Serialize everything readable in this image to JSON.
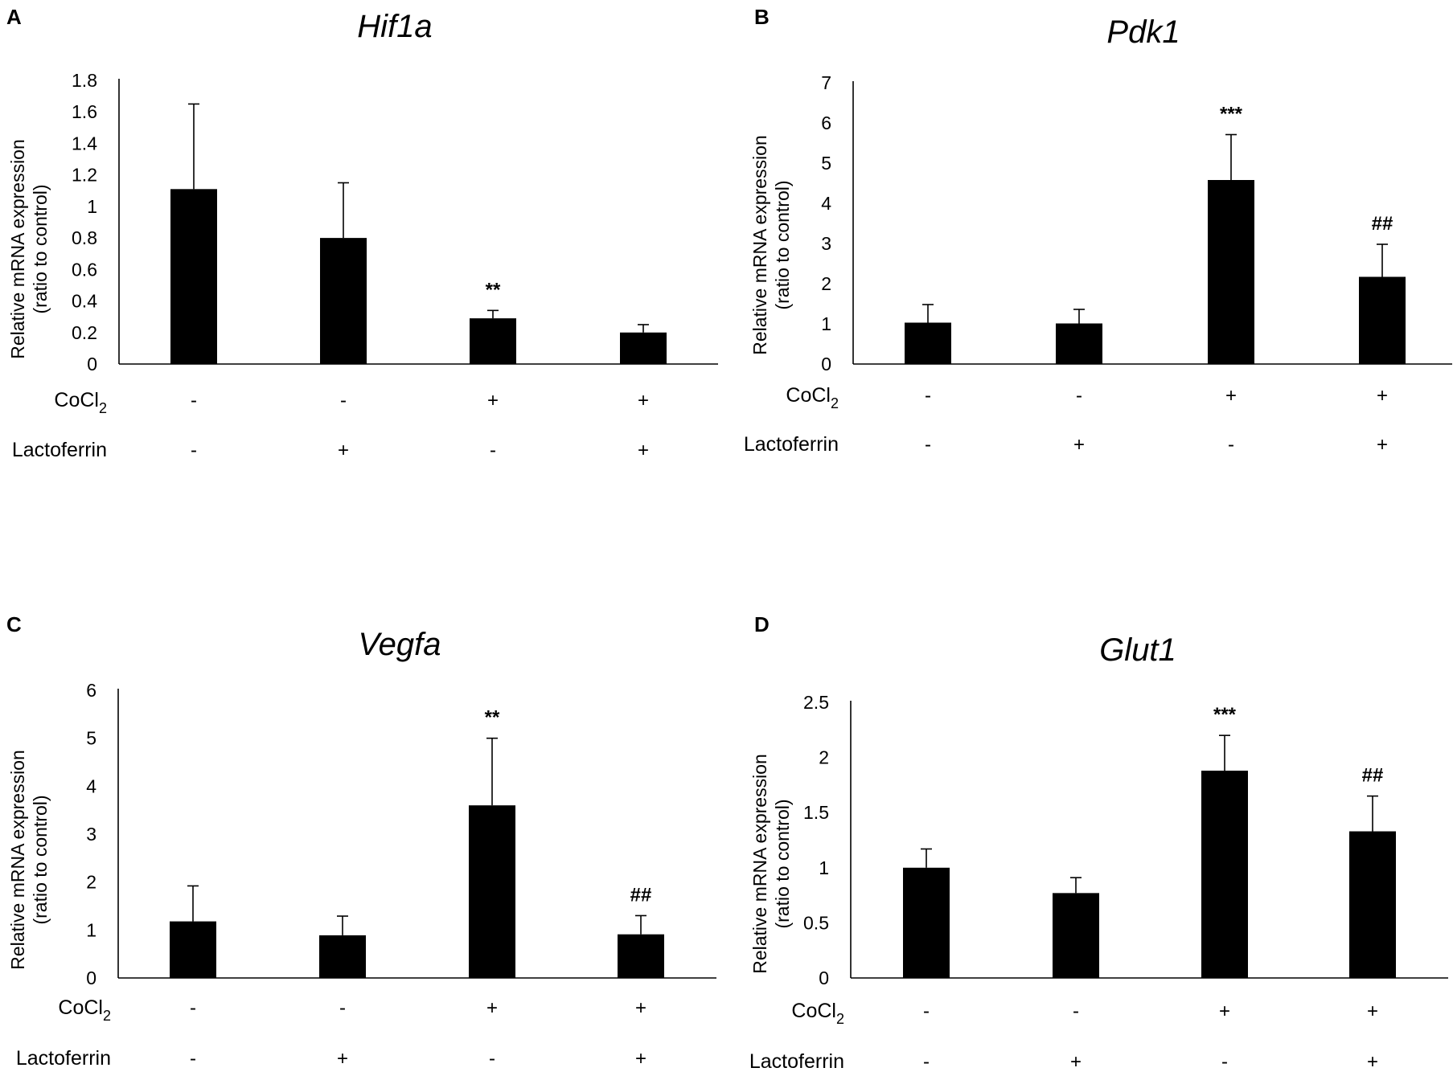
{
  "chart_data": [
    {
      "type": "bar",
      "panel": "A",
      "title": "Hif1a",
      "ylabel": [
        "Relative mRNA expression",
        "(ratio to control)"
      ],
      "ylim": [
        0,
        1.8
      ],
      "yticks": [
        "0",
        "0.2",
        "0.4",
        "0.6",
        "0.8",
        "1",
        "1.2",
        "1.4",
        "1.6",
        "1.8"
      ],
      "conditions": [
        {
          "label": "CoCl2",
          "values": [
            "-",
            "-",
            "+",
            "+"
          ]
        },
        {
          "label": "Lactoferrin",
          "values": [
            "-",
            "+",
            "-",
            "+"
          ]
        }
      ],
      "values": [
        1.11,
        0.8,
        0.29,
        0.2
      ],
      "errors": [
        0.54,
        0.35,
        0.05,
        0.05
      ],
      "annotations": [
        "",
        "",
        "**",
        ""
      ]
    },
    {
      "type": "bar",
      "panel": "B",
      "title": "Pdk1",
      "ylabel": [
        "Relative mRNA expression",
        "(ratio to control)"
      ],
      "ylim": [
        0,
        7
      ],
      "yticks": [
        "0",
        "1",
        "2",
        "3",
        "4",
        "5",
        "6",
        "7"
      ],
      "conditions": [
        {
          "label": "CoCl2",
          "values": [
            "-",
            "-",
            "+",
            "+"
          ]
        },
        {
          "label": "Lactoferrin",
          "values": [
            "-",
            "+",
            "-",
            "+"
          ]
        }
      ],
      "values": [
        1.03,
        1.01,
        4.58,
        2.17
      ],
      "errors": [
        0.45,
        0.35,
        1.13,
        0.81
      ],
      "annotations": [
        "",
        "",
        "***",
        "##"
      ]
    },
    {
      "type": "bar",
      "panel": "C",
      "title": "Vegfa",
      "ylabel": [
        "Relative mRNA expression",
        "(ratio to control)"
      ],
      "ylim": [
        0,
        6
      ],
      "yticks": [
        "0",
        "1",
        "2",
        "3",
        "4",
        "5",
        "6"
      ],
      "conditions": [
        {
          "label": "CoCl2",
          "values": [
            "-",
            "-",
            "+",
            "+"
          ]
        },
        {
          "label": "Lactoferrin",
          "values": [
            "-",
            "+",
            "-",
            "+"
          ]
        }
      ],
      "values": [
        1.18,
        0.89,
        3.6,
        0.91
      ],
      "errors": [
        0.74,
        0.4,
        1.4,
        0.39
      ],
      "annotations": [
        "",
        "",
        "**",
        "##"
      ]
    },
    {
      "type": "bar",
      "panel": "D",
      "title": "Glut1",
      "ylabel": [
        "Relative mRNA expression",
        "(ratio to control)"
      ],
      "ylim": [
        0,
        2.5
      ],
      "yticks": [
        "0",
        "0.5",
        "1",
        "1.5",
        "2",
        "2.5"
      ],
      "conditions": [
        {
          "label": "CoCl2",
          "values": [
            "-",
            "-",
            "+",
            "+"
          ]
        },
        {
          "label": "Lactoferrin",
          "values": [
            "-",
            "+",
            "-",
            "+"
          ]
        }
      ],
      "values": [
        1.0,
        0.77,
        1.88,
        1.33
      ],
      "errors": [
        0.17,
        0.14,
        0.32,
        0.32
      ],
      "annotations": [
        "",
        "",
        "***",
        "##"
      ]
    }
  ]
}
